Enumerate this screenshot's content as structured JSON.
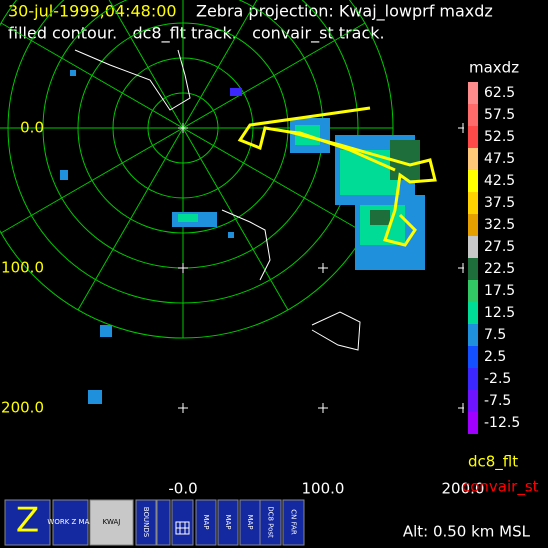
{
  "header": {
    "time": "30-jul-1999,04:48:00",
    "projection": "Zebra projection: Kwaj_lowprf maxdz",
    "line2": "filled contour.   dc8_flt track.   convair_st track."
  },
  "axes": {
    "x_labels": [
      "-0.0",
      "100.0",
      "200.0"
    ],
    "y_labels": [
      "0.0",
      "100.0",
      "200.0"
    ]
  },
  "legend": {
    "title": "maxdz",
    "entries": [
      {
        "label": "62.5",
        "color": "#ff8c8c"
      },
      {
        "label": "57.5",
        "color": "#ff6a6a"
      },
      {
        "label": "52.5",
        "color": "#ff4a4a"
      },
      {
        "label": "47.5",
        "color": "#ffc878"
      },
      {
        "label": "42.5",
        "color": "#ffff00"
      },
      {
        "label": "37.5",
        "color": "#ffd200"
      },
      {
        "label": "32.5",
        "color": "#e6a000"
      },
      {
        "label": "27.5",
        "color": "#c8c8c8"
      },
      {
        "label": "22.5",
        "color": "#1e6e3c"
      },
      {
        "label": "17.5",
        "color": "#32c864"
      },
      {
        "label": "12.5",
        "color": "#00dc96"
      },
      {
        "label": "7.5",
        "color": "#1e90dc"
      },
      {
        "label": "2.5",
        "color": "#1450ff"
      },
      {
        "label": "-2.5",
        "color": "#3c28ff"
      },
      {
        "label": "-7.5",
        "color": "#6e14ff"
      },
      {
        "label": "-12.5",
        "color": "#a000ff"
      }
    ]
  },
  "tracks": [
    {
      "name": "dc8_flt",
      "color": "#ffff00"
    },
    {
      "name": "convair_st",
      "color": "#ff0000"
    }
  ],
  "altitude": "Alt: 0.50 km MSL",
  "buttons": [
    "Z",
    "WORK Z MAP",
    "KWAJ",
    "BOUNDS",
    "MAP",
    "MAP",
    "MAP",
    "DC8 Post",
    "CN FAR"
  ]
}
